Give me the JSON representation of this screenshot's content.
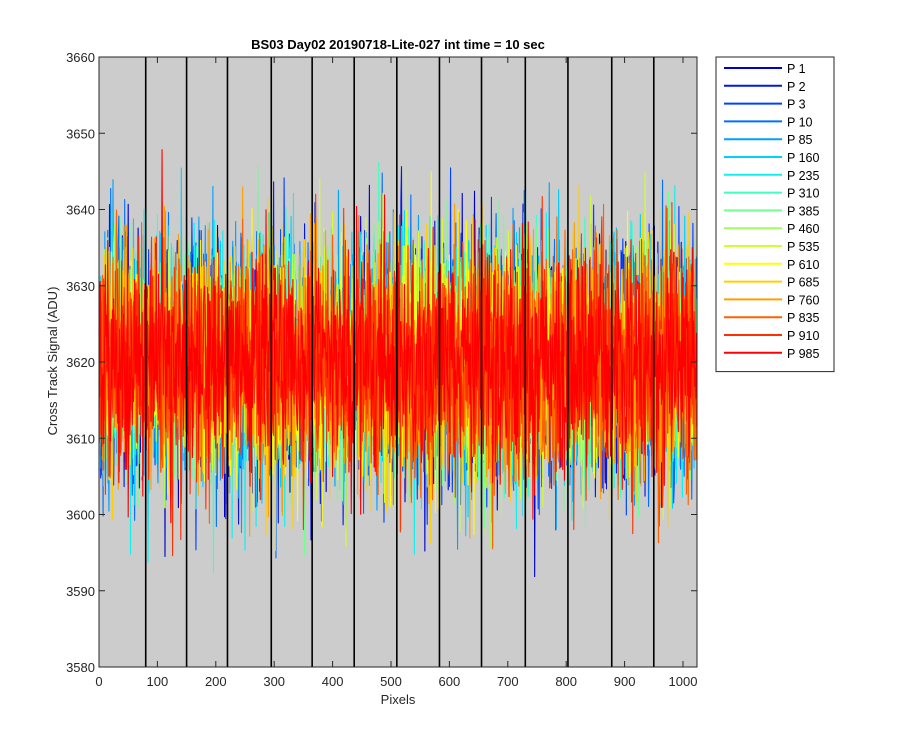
{
  "chart_data": {
    "type": "line",
    "title": "BS03 Day02 20190718-Lite-027 int time = 10 sec",
    "xlabel": "Pixels",
    "ylabel": "Cross Track Signal (ADU)",
    "xlim": [
      0,
      1024
    ],
    "ylim": [
      3580,
      3660
    ],
    "xticks": [
      0,
      100,
      200,
      300,
      400,
      500,
      600,
      700,
      800,
      900,
      1000
    ],
    "yticks": [
      3580,
      3590,
      3600,
      3610,
      3620,
      3630,
      3640,
      3650,
      3660
    ],
    "grid": false,
    "background": "#cccccc",
    "vertical_lines": [
      80,
      150,
      220,
      295,
      365,
      437,
      510,
      583,
      655,
      730,
      803,
      878,
      950
    ],
    "legend_position": "outside-right",
    "mean": 3620,
    "noise_std": 7.5,
    "num_points": 1024,
    "series": [
      {
        "name": "P 1",
        "color": "#0000cc"
      },
      {
        "name": "P 2",
        "color": "#0018e0"
      },
      {
        "name": "P 3",
        "color": "#0040ff"
      },
      {
        "name": "P 10",
        "color": "#0070ff"
      },
      {
        "name": "P 85",
        "color": "#00a0ff"
      },
      {
        "name": "P 160",
        "color": "#00d0ff"
      },
      {
        "name": "P 235",
        "color": "#10f0f0"
      },
      {
        "name": "P 310",
        "color": "#40ffc0"
      },
      {
        "name": "P 385",
        "color": "#70ff90"
      },
      {
        "name": "P 460",
        "color": "#a0ff60"
      },
      {
        "name": "P 535",
        "color": "#d0ff30"
      },
      {
        "name": "P 610",
        "color": "#ffff00"
      },
      {
        "name": "P 685",
        "color": "#ffd000"
      },
      {
        "name": "P 760",
        "color": "#ffa000"
      },
      {
        "name": "P 835",
        "color": "#ff6000"
      },
      {
        "name": "P 910",
        "color": "#ff3000"
      },
      {
        "name": "P 985",
        "color": "#ff0000"
      }
    ]
  }
}
